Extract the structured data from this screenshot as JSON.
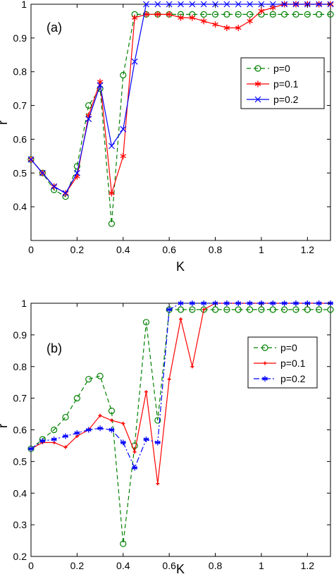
{
  "chart_data": [
    {
      "type": "line",
      "panel_label": "(a)",
      "xlabel": "K",
      "ylabel": "r",
      "xlim": [
        0,
        1.3
      ],
      "ylim": [
        0.3,
        1
      ],
      "xticks": [
        "0",
        "0.2",
        "0.4",
        "0.6",
        "0.8",
        "1",
        "1.2"
      ],
      "yticks": [
        "0.4",
        "0.5",
        "0.6",
        "0.7",
        "0.8",
        "0.9",
        "1"
      ],
      "legend_position": "right",
      "series": [
        {
          "name": "p=0",
          "color": "#008000",
          "dash": "6,4",
          "marker": "circle",
          "x": [
            0,
            0.05,
            0.1,
            0.15,
            0.2,
            0.25,
            0.3,
            0.35,
            0.4,
            0.45,
            0.5,
            0.55,
            0.6,
            0.65,
            0.7,
            0.75,
            0.8,
            0.85,
            0.9,
            0.95,
            1.0,
            1.05,
            1.1,
            1.15,
            1.2,
            1.25,
            1.3
          ],
          "values": [
            0.54,
            0.5,
            0.45,
            0.43,
            0.52,
            0.7,
            0.75,
            0.35,
            0.79,
            0.97,
            0.97,
            0.97,
            0.97,
            0.97,
            0.97,
            0.97,
            0.97,
            0.97,
            0.97,
            0.97,
            0.97,
            0.97,
            0.97,
            0.97,
            0.97,
            0.97,
            0.97
          ]
        },
        {
          "name": "p=0.1",
          "color": "#ff0000",
          "dash": "",
          "marker": "star",
          "x": [
            0,
            0.05,
            0.1,
            0.15,
            0.2,
            0.25,
            0.3,
            0.35,
            0.4,
            0.45,
            0.5,
            0.55,
            0.6,
            0.65,
            0.7,
            0.75,
            0.8,
            0.85,
            0.9,
            0.95,
            1.0,
            1.05,
            1.1,
            1.15,
            1.2,
            1.25,
            1.3
          ],
          "values": [
            0.54,
            0.5,
            0.46,
            0.44,
            0.49,
            0.67,
            0.77,
            0.44,
            0.55,
            0.96,
            0.97,
            0.97,
            0.97,
            0.96,
            0.96,
            0.95,
            0.94,
            0.93,
            0.93,
            0.95,
            0.98,
            0.99,
            1.0,
            1.0,
            1.0,
            1.0,
            1.0
          ]
        },
        {
          "name": "p=0.2",
          "color": "#0000ff",
          "dash": "",
          "marker": "x",
          "x": [
            0,
            0.05,
            0.1,
            0.15,
            0.2,
            0.25,
            0.3,
            0.35,
            0.4,
            0.45,
            0.5,
            0.55,
            0.6,
            0.65,
            0.7,
            0.75,
            0.8,
            0.85,
            0.9,
            0.95,
            1.0,
            1.05,
            1.1,
            1.15,
            1.2,
            1.25,
            1.3
          ],
          "values": [
            0.54,
            0.5,
            0.46,
            0.44,
            0.5,
            0.66,
            0.76,
            0.58,
            0.63,
            0.83,
            1.0,
            1.0,
            1.0,
            1.0,
            1.0,
            1.0,
            1.0,
            1.0,
            1.0,
            1.0,
            1.0,
            1.0,
            1.0,
            1.0,
            1.0,
            1.0,
            1.0
          ]
        }
      ]
    },
    {
      "type": "line",
      "panel_label": "(b)",
      "xlabel": "K",
      "ylabel": "r",
      "xlim": [
        0,
        1.3
      ],
      "ylim": [
        0.2,
        1
      ],
      "xticks": [
        "0",
        "0.2",
        "0.4",
        "0.6",
        "0.8",
        "1",
        "1.2"
      ],
      "yticks": [
        "0.2",
        "0.3",
        "0.4",
        "0.5",
        "0.6",
        "0.7",
        "0.8",
        "0.9",
        "1"
      ],
      "legend_position": "right",
      "series": [
        {
          "name": "p=0",
          "color": "#008000",
          "dash": "6,4",
          "marker": "circle",
          "x": [
            0,
            0.05,
            0.1,
            0.15,
            0.2,
            0.25,
            0.3,
            0.35,
            0.4,
            0.45,
            0.5,
            0.55,
            0.6,
            0.65,
            0.7,
            0.75,
            0.8,
            0.85,
            0.9,
            0.95,
            1.0,
            1.05,
            1.1,
            1.15,
            1.2,
            1.25,
            1.3
          ],
          "values": [
            0.54,
            0.57,
            0.6,
            0.64,
            0.7,
            0.76,
            0.77,
            0.66,
            0.24,
            0.55,
            0.94,
            0.63,
            0.98,
            0.98,
            0.98,
            0.98,
            0.98,
            0.98,
            0.98,
            0.98,
            0.98,
            0.98,
            0.98,
            0.98,
            0.98,
            0.98,
            0.98
          ]
        },
        {
          "name": "p=0.1",
          "color": "#ff0000",
          "dash": "",
          "marker": "plus",
          "x": [
            0,
            0.05,
            0.1,
            0.15,
            0.2,
            0.25,
            0.3,
            0.35,
            0.4,
            0.45,
            0.5,
            0.55,
            0.6,
            0.65,
            0.7,
            0.75,
            0.8,
            0.85,
            0.9,
            0.95,
            1.0,
            1.05,
            1.1,
            1.15,
            1.2,
            1.25,
            1.3
          ],
          "values": [
            0.54,
            0.56,
            0.56,
            0.545,
            0.58,
            0.6,
            0.645,
            0.63,
            0.62,
            0.53,
            0.72,
            0.43,
            0.76,
            0.95,
            0.8,
            0.98,
            1.0,
            1.0,
            1.0,
            1.0,
            1.0,
            1.0,
            1.0,
            1.0,
            1.0,
            1.0,
            1.0
          ]
        },
        {
          "name": "p=0.2",
          "color": "#0000ff",
          "dash": "8,3,2,3",
          "marker": "asterisk",
          "x": [
            0,
            0.05,
            0.1,
            0.15,
            0.2,
            0.25,
            0.3,
            0.35,
            0.4,
            0.45,
            0.5,
            0.55,
            0.6,
            0.65,
            0.7,
            0.75,
            0.8,
            0.85,
            0.9,
            0.95,
            1.0,
            1.05,
            1.1,
            1.15,
            1.2,
            1.25,
            1.3
          ],
          "values": [
            0.54,
            0.565,
            0.57,
            0.58,
            0.59,
            0.6,
            0.605,
            0.6,
            0.56,
            0.48,
            0.57,
            0.56,
            0.98,
            1.0,
            1.0,
            1.0,
            1.0,
            1.0,
            1.0,
            1.0,
            1.0,
            1.0,
            1.0,
            1.0,
            1.0,
            1.0,
            1.0
          ]
        }
      ]
    }
  ]
}
